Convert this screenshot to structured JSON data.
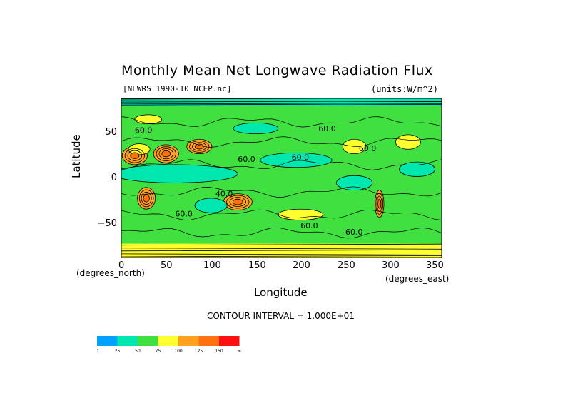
{
  "title": "Monthly Mean Net Longwave Radiation Flux",
  "filename": "[NLWRS_1990-10_NCEP.nc]",
  "units": "(units:W/m^2)",
  "ylabel": "Latitude",
  "xlabel": "Longitude",
  "x_units_label": "(degrees_north)",
  "x_units_label2": "(degrees_east)",
  "contour_interval": "CONTOUR INTERVAL = 1.000E+01",
  "y_ticks": [
    "50",
    "0",
    "−50"
  ],
  "x_ticks": [
    "0",
    "50",
    "100",
    "150",
    "200",
    "250",
    "300",
    "350"
  ],
  "contour_labels": [
    "60.0",
    "60.0",
    "60.0",
    "60.0",
    "60.0",
    "60.0",
    "60.0",
    "60.0",
    "40.0"
  ],
  "colors": {
    "c0": "#00a0ff",
    "c25": "#00e8b0",
    "c50": "#40e040",
    "c75": "#ffff30",
    "c100": "#ffa020",
    "c125": "#ff7010",
    "c150": "#ff1010"
  },
  "legend": {
    "labels": [
      "0",
      "25",
      "50",
      "75",
      "100",
      "125",
      "150",
      "∞"
    ],
    "colors": [
      "#00a0ff",
      "#00e8b0",
      "#40e040",
      "#ffff30",
      "#ffa020",
      "#ff7010",
      "#ff1010"
    ]
  },
  "map_data": {
    "type": "filled-contour",
    "variable": "Net Longwave Radiation Flux",
    "x_range": [
      0,
      357.5
    ],
    "y_range": [
      -88,
      88
    ],
    "levels": [
      0,
      25,
      50,
      75,
      100,
      125,
      150
    ],
    "background_level": 50,
    "patches": [
      {
        "lon": 15,
        "lat": 25,
        "rlon": 14,
        "rlat": 10,
        "level": 100
      },
      {
        "lon": 50,
        "lat": 27,
        "rlon": 14,
        "rlat": 10,
        "level": 100
      },
      {
        "lon": 87,
        "lat": 35,
        "rlon": 14,
        "rlat": 8,
        "level": 100
      },
      {
        "lon": 130,
        "lat": -26,
        "rlon": 16,
        "rlat": 9,
        "level": 100
      },
      {
        "lon": 28,
        "lat": -22,
        "rlon": 10,
        "rlat": 12,
        "level": 100
      },
      {
        "lon": 260,
        "lat": 35,
        "rlon": 13,
        "rlat": 8,
        "level": 75
      },
      {
        "lon": 288,
        "lat": -28,
        "rlon": 5,
        "rlat": 15,
        "level": 100
      },
      {
        "lon": 320,
        "lat": 40,
        "rlon": 14,
        "rlat": 8,
        "level": 75
      },
      {
        "lon": 20,
        "lat": 32,
        "rlon": 12,
        "rlat": 6,
        "level": 75
      },
      {
        "lon": 60,
        "lat": 5,
        "rlon": 70,
        "rlat": 10,
        "level": 25
      },
      {
        "lon": 195,
        "lat": 20,
        "rlon": 40,
        "rlat": 8,
        "level": 25
      },
      {
        "lon": 150,
        "lat": 55,
        "rlon": 25,
        "rlat": 6,
        "level": 25
      },
      {
        "lon": 260,
        "lat": -5,
        "rlon": 20,
        "rlat": 8,
        "level": 25
      },
      {
        "lon": 330,
        "lat": 10,
        "rlon": 20,
        "rlat": 8,
        "level": 25
      },
      {
        "lon": 100,
        "lat": -30,
        "rlon": 18,
        "rlat": 8,
        "level": 25
      },
      {
        "lon": 200,
        "lat": -40,
        "rlon": 25,
        "rlat": 6,
        "level": 75
      },
      {
        "lon": 30,
        "lat": 65,
        "rlon": 15,
        "rlat": 5,
        "level": 75
      }
    ],
    "polar_bands": [
      {
        "lat_from": -88,
        "lat_to": -72,
        "level": 75
      },
      {
        "lat_from": 80,
        "lat_to": 88,
        "level": 25
      }
    ]
  }
}
